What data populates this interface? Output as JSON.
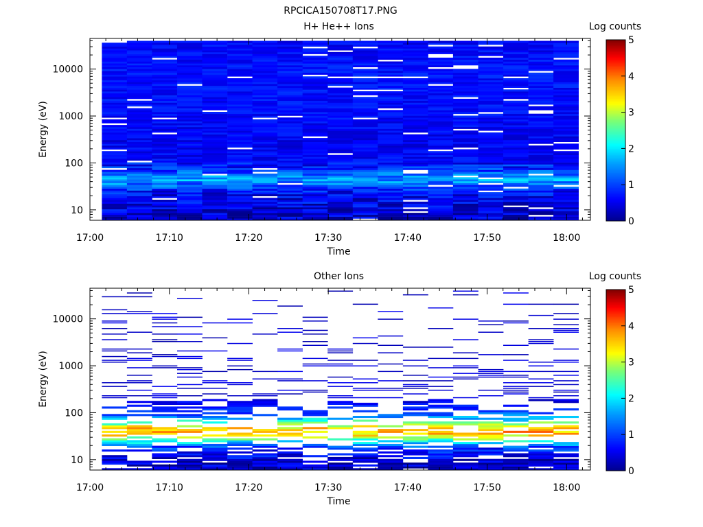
{
  "title": "RPCICA150708T17.PNG",
  "chart_data": [
    {
      "type": "heatmap",
      "title": "H+ He++ Ions",
      "xlabel": "Time",
      "ylabel": "Energy (eV)",
      "x_ticks": [
        "17:00",
        "17:10",
        "17:20",
        "17:30",
        "17:40",
        "17:50",
        "18:00"
      ],
      "y_ticks": [
        "10",
        "100",
        "1000",
        "10000"
      ],
      "xlim_minutes_after_1700": [
        0,
        63
      ],
      "ylim": [
        6,
        45000
      ],
      "y_scale": "log",
      "colorbar": {
        "label": "Log counts",
        "range": [
          0,
          5
        ],
        "ticks": [
          "0",
          "1",
          "2",
          "3",
          "4",
          "5"
        ]
      },
      "time_bins": 19,
      "profile_log_counts": [
        {
          "energy_eV": 8,
          "value": 0.35
        },
        {
          "energy_eV": 12,
          "value": 0.45
        },
        {
          "energy_eV": 18,
          "value": 0.55
        },
        {
          "energy_eV": 25,
          "value": 0.7
        },
        {
          "energy_eV": 35,
          "value": 1.3
        },
        {
          "energy_eV": 45,
          "value": 1.6
        },
        {
          "energy_eV": 60,
          "value": 1.2
        },
        {
          "energy_eV": 80,
          "value": 0.8
        },
        {
          "energy_eV": 120,
          "value": 0.6
        },
        {
          "energy_eV": 300,
          "value": 0.55
        },
        {
          "energy_eV": 1000,
          "value": 0.65
        },
        {
          "energy_eV": 10000,
          "value": 0.7
        },
        {
          "energy_eV": 40000,
          "value": 0.6
        }
      ],
      "empty_fraction_low_energy": 0.04,
      "empty_fraction_high_energy": 0.05
    },
    {
      "type": "heatmap",
      "title": "Other Ions",
      "xlabel": "Time",
      "ylabel": "Energy (eV)",
      "x_ticks": [
        "17:00",
        "17:10",
        "17:20",
        "17:30",
        "17:40",
        "17:50",
        "18:00"
      ],
      "y_ticks": [
        "10",
        "100",
        "1000",
        "10000"
      ],
      "xlim_minutes_after_1700": [
        0,
        63
      ],
      "ylim": [
        6,
        45000
      ],
      "y_scale": "log",
      "colorbar": {
        "label": "Log counts",
        "range": [
          0,
          5
        ],
        "ticks": [
          "0",
          "1",
          "2",
          "3",
          "4",
          "5"
        ]
      },
      "time_bins": 19,
      "profile_log_counts": [
        {
          "energy_eV": 8,
          "value": 0.3
        },
        {
          "energy_eV": 12,
          "value": 0.5
        },
        {
          "energy_eV": 18,
          "value": 0.9
        },
        {
          "energy_eV": 25,
          "value": 2.2
        },
        {
          "energy_eV": 32,
          "value": 3.2
        },
        {
          "energy_eV": 42,
          "value": 3.8
        },
        {
          "energy_eV": 55,
          "value": 3.0
        },
        {
          "energy_eV": 75,
          "value": 1.8
        },
        {
          "energy_eV": 100,
          "value": 1.0
        },
        {
          "energy_eV": 150,
          "value": 0.6
        },
        {
          "energy_eV": 200,
          "value": 0.4
        },
        {
          "energy_eV": 1000,
          "value": 0.25
        },
        {
          "energy_eV": 40000,
          "value": 0.2
        }
      ],
      "empty_fraction_low_energy": 0.15,
      "empty_fraction_high_energy": 0.94
    }
  ]
}
